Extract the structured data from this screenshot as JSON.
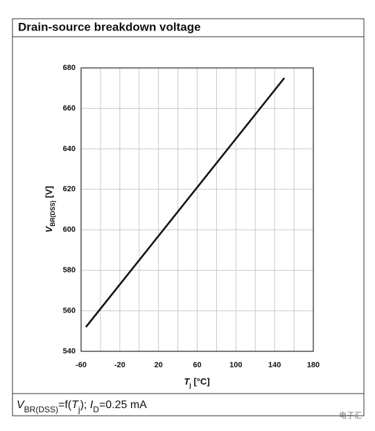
{
  "chart_data": {
    "type": "line",
    "title": "Drain-source breakdown voltage",
    "x_label": [
      {
        "text": "T",
        "style": "italic"
      },
      {
        "text": "j",
        "style": "sub"
      },
      {
        "text": " [°C]",
        "style": "normal"
      }
    ],
    "y_label": [
      {
        "text": "V",
        "style": "italic"
      },
      {
        "text": "BR(DSS)",
        "style": "sub"
      },
      {
        "text": " [V]",
        "style": "normal"
      }
    ],
    "footer": [
      {
        "text": "V",
        "style": "italic"
      },
      {
        "text": "BR(DSS)",
        "style": "sub"
      },
      {
        "text": "=f(",
        "style": "normal"
      },
      {
        "text": "T",
        "style": "italic"
      },
      {
        "text": "j",
        "style": "sub"
      },
      {
        "text": "); ",
        "style": "normal"
      },
      {
        "text": "I",
        "style": "italic"
      },
      {
        "text": "D",
        "style": "sub"
      },
      {
        "text": "=0.25 mA",
        "style": "normal"
      }
    ],
    "watermark": "电子汇",
    "x": [
      -55,
      150
    ],
    "series": [
      {
        "values": [
          552,
          675
        ],
        "color": "#111111"
      }
    ],
    "xlim": [
      -60,
      180
    ],
    "xticks": [
      -60,
      -20,
      20,
      60,
      100,
      140,
      180
    ],
    "xgrid_minor": [
      -40,
      0,
      40,
      80,
      120,
      160
    ],
    "ylim": [
      540,
      680
    ],
    "yticks": [
      540,
      560,
      580,
      600,
      620,
      640,
      660,
      680
    ],
    "grid": true
  }
}
